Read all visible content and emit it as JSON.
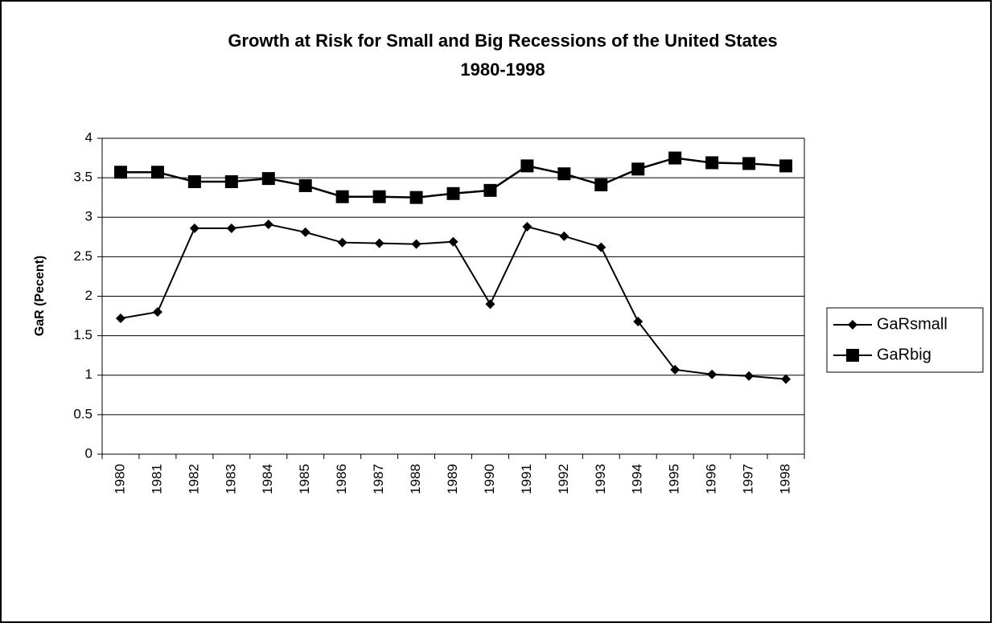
{
  "chart_data": {
    "type": "line",
    "title": "Growth at Risk for Small and Big Recessions of the United States",
    "subtitle": "1980-1998",
    "y_label": "GaR (Pecent)",
    "categories": [
      "1980",
      "1981",
      "1982",
      "1983",
      "1984",
      "1985",
      "1986",
      "1987",
      "1988",
      "1989",
      "1990",
      "1991",
      "1992",
      "1993",
      "1994",
      "1995",
      "1996",
      "1997",
      "1998"
    ],
    "series": [
      {
        "name": "GaRsmall",
        "color": "#000000",
        "marker": "diamond",
        "values": [
          1.72,
          1.8,
          2.86,
          2.86,
          2.91,
          2.81,
          2.68,
          2.67,
          2.66,
          2.69,
          1.9,
          2.88,
          2.76,
          2.62,
          1.68,
          1.07,
          1.01,
          0.99,
          0.95
        ]
      },
      {
        "name": "GaRbig",
        "color": "#000000",
        "marker": "square",
        "values": [
          3.57,
          3.57,
          3.45,
          3.45,
          3.49,
          3.4,
          3.26,
          3.26,
          3.25,
          3.3,
          3.34,
          3.65,
          3.55,
          3.41,
          3.61,
          3.75,
          3.69,
          3.68,
          3.65
        ]
      }
    ],
    "ylim": [
      0,
      4
    ],
    "yticks": [
      0,
      0.5,
      1,
      1.5,
      2,
      2.5,
      3,
      3.5,
      4
    ],
    "grid": true,
    "legend": "right"
  }
}
